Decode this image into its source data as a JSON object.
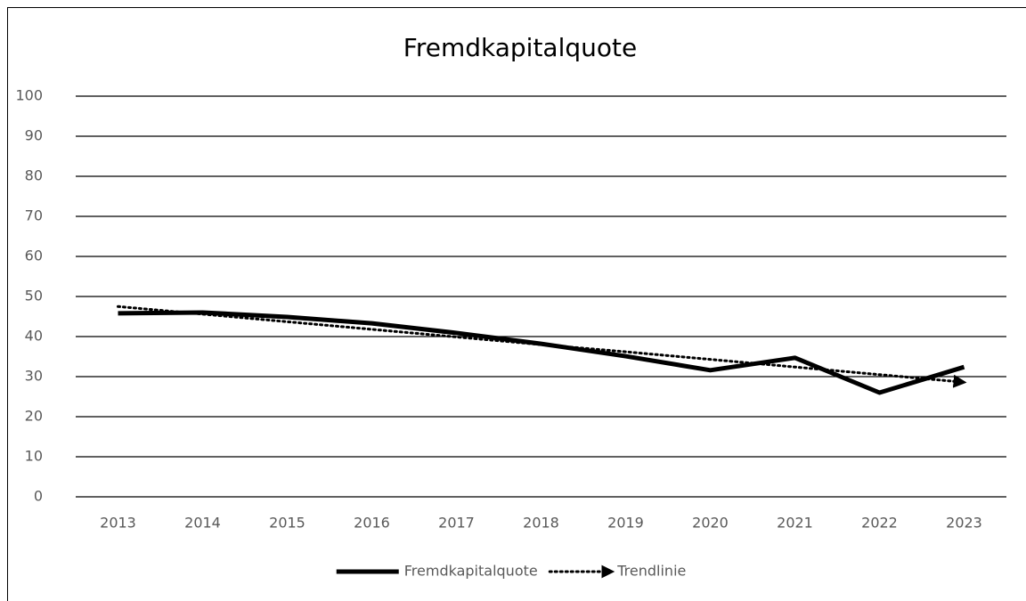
{
  "chart_data": {
    "type": "line",
    "title": "Fremdkapitalquote",
    "categories": [
      "2013",
      "2014",
      "2015",
      "2016",
      "2017",
      "2018",
      "2019",
      "2020",
      "2021",
      "2022",
      "2023"
    ],
    "series": [
      {
        "name": "Fremdkapitalquote",
        "color": "#000000",
        "style": "solid",
        "values": [
          45.8,
          46,
          44.9,
          43.3,
          40.9,
          38.2,
          35.1,
          31.6,
          34.7,
          26,
          32.4
        ]
      },
      {
        "name": "Trendlinie",
        "color": "#000000",
        "style": "dotted",
        "values": [
          47.5,
          45.6,
          43.7,
          41.8,
          39.9,
          38.0,
          36.2,
          34.3,
          32.4,
          30.5,
          28.6
        ]
      }
    ],
    "ylim": [
      0,
      100
    ],
    "yticks": [
      0,
      10,
      20,
      30,
      40,
      50,
      60,
      70,
      80,
      90,
      100
    ],
    "grid": true,
    "legend": "bottom"
  }
}
